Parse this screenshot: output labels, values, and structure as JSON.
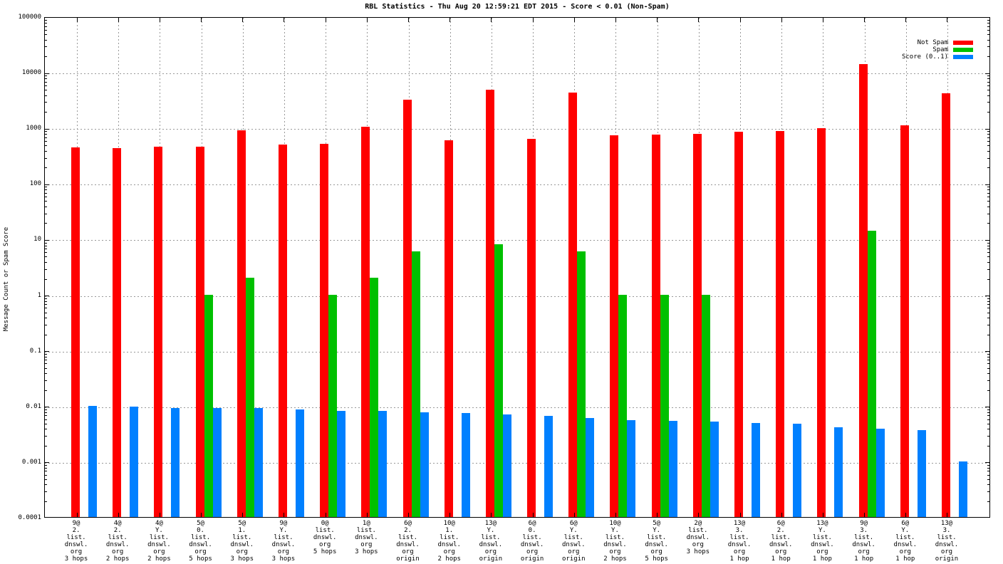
{
  "chart_data": {
    "type": "bar",
    "title": "RBL Statistics - Thu Aug 20 12:59:21 EDT 2015 - Score < 0.01 (Non-Spam)",
    "ylabel": "Message Count or Spam Score",
    "xlabel": "",
    "yscale": "log",
    "ylim": [
      0.0001,
      100000
    ],
    "yticks": [
      "100000",
      "10000",
      "1000",
      "100",
      "10",
      "1",
      "0.1",
      "0.01",
      "0.001",
      "0.0001"
    ],
    "grid": "dashed",
    "legend_position": "top-right-inside",
    "colors": {
      "not_spam": "#ff0000",
      "spam": "#00c000",
      "score": "#0080ff",
      "grid": "#999999"
    },
    "categories": [
      [
        "9@",
        "2.",
        "list.",
        "dnswl.",
        "org",
        "3 hops"
      ],
      [
        "4@",
        "2.",
        "list.",
        "dnswl.",
        "org",
        "2 hops"
      ],
      [
        "4@",
        "Y.",
        "list.",
        "dnswl.",
        "org",
        "2 hops"
      ],
      [
        "5@",
        "0.",
        "list.",
        "dnswl.",
        "org",
        "5 hops"
      ],
      [
        "5@",
        "1.",
        "list.",
        "dnswl.",
        "org",
        "3 hops"
      ],
      [
        "9@",
        "Y.",
        "list.",
        "dnswl.",
        "org",
        "3 hops"
      ],
      [
        "0@",
        "list.",
        "dnswl.",
        "org",
        "5 hops"
      ],
      [
        "1@",
        "list.",
        "dnswl.",
        "org",
        "3 hops"
      ],
      [
        "6@",
        "2.",
        "list.",
        "dnswl.",
        "org",
        "origin"
      ],
      [
        "10@",
        "1.",
        "list.",
        "dnswl.",
        "org",
        "2 hops"
      ],
      [
        "13@",
        "Y.",
        "list.",
        "dnswl.",
        "org",
        "origin"
      ],
      [
        "6@",
        "0.",
        "list.",
        "dnswl.",
        "org",
        "origin"
      ],
      [
        "6@",
        "Y.",
        "list.",
        "dnswl.",
        "org",
        "origin"
      ],
      [
        "10@",
        "Y.",
        "list.",
        "dnswl.",
        "org",
        "2 hops"
      ],
      [
        "5@",
        "Y.",
        "list.",
        "dnswl.",
        "org",
        "5 hops"
      ],
      [
        "2@",
        "list.",
        "dnswl.",
        "org",
        "3 hops"
      ],
      [
        "13@",
        "3.",
        "list.",
        "dnswl.",
        "org",
        "1 hop"
      ],
      [
        "6@",
        "2.",
        "list.",
        "dnswl.",
        "org",
        "1 hop"
      ],
      [
        "13@",
        "Y.",
        "list.",
        "dnswl.",
        "org",
        "1 hop"
      ],
      [
        "9@",
        "3.",
        "list.",
        "dnswl.",
        "org",
        "1 hop"
      ],
      [
        "6@",
        "Y.",
        "list.",
        "dnswl.",
        "org",
        "1 hop"
      ],
      [
        "13@",
        "3.",
        "list.",
        "dnswl.",
        "org",
        "origin"
      ]
    ],
    "series": [
      {
        "name": "Not Spam",
        "color": "#ff0000",
        "values": [
          440,
          425,
          460,
          455,
          890,
          490,
          510,
          1050,
          3200,
          590,
          4800,
          620,
          4250,
          720,
          750,
          775,
          840,
          870,
          970,
          14000,
          1100,
          4200
        ]
      },
      {
        "name": "Spam",
        "color": "#00c000",
        "values": [
          0,
          0,
          0,
          1,
          2,
          0,
          1,
          2,
          6,
          0,
          8,
          0,
          6,
          1,
          1,
          1,
          0,
          0,
          0,
          14,
          0,
          0
        ]
      },
      {
        "name": "Score (0..1)",
        "color": "#0080ff",
        "values": [
          0.0098,
          0.0097,
          0.0092,
          0.0091,
          0.009,
          0.0086,
          0.0082,
          0.0081,
          0.0076,
          0.0073,
          0.0069,
          0.0066,
          0.006,
          0.0055,
          0.0054,
          0.0052,
          0.0049,
          0.0047,
          0.0041,
          0.0039,
          0.0036,
          0.001
        ]
      }
    ]
  }
}
